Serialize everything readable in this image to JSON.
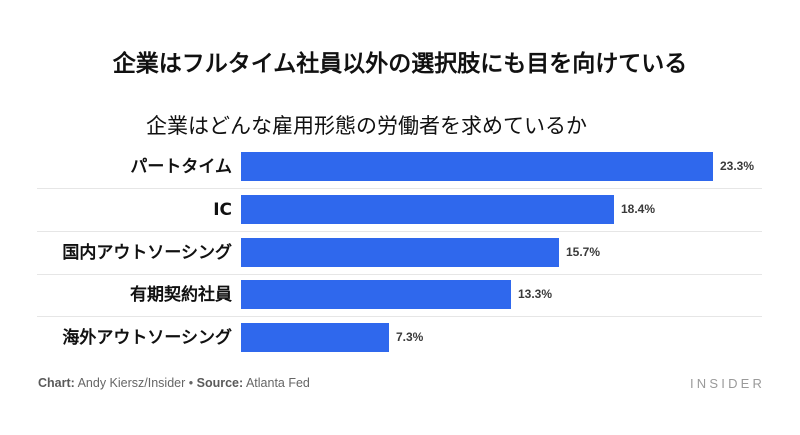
{
  "header": {
    "title": "企業はフルタイム社員以外の選択肢にも目を向けている",
    "subtitle": "企業はどんな雇用形態の労働者を求めているか"
  },
  "footer": {
    "chart_prefix": "Chart:",
    "chart_credit": " Andy Kiersz/Insider ",
    "separator": "•",
    "source_prefix": " Source:",
    "source": " Atlanta Fed",
    "logo": "INSIDER"
  },
  "colors": {
    "bar": "#2f68ed",
    "gridline": "#e6e6e6",
    "value_label": "#3a3a3a"
  },
  "chart_data": {
    "type": "bar",
    "orientation": "horizontal",
    "title": "企業はフルタイム社員以外の選択肢にも目を向けている",
    "subtitle": "企業はどんな雇用形態の労働者を求めているか",
    "categories": [
      "パートタイム",
      "IC",
      "国内アウトソーシング",
      "有期契約社員",
      "海外アウトソーシング"
    ],
    "values": [
      23.3,
      18.4,
      15.7,
      13.3,
      7.3
    ],
    "value_labels": [
      "23.3%",
      "18.4%",
      "15.7%",
      "13.3%",
      "7.3%"
    ],
    "unit": "%",
    "xlabel": "",
    "ylabel": "",
    "grid": true,
    "legend": null,
    "source": "Atlanta Fed",
    "credit": "Andy Kiersz/Insider"
  }
}
